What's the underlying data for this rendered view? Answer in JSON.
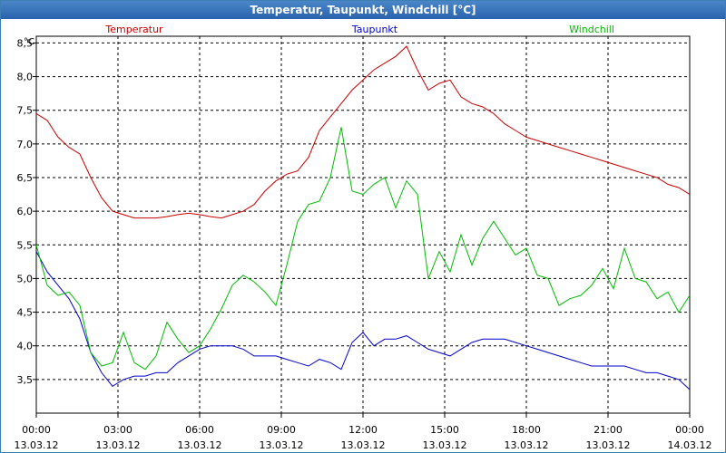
{
  "window": {
    "title": "Temperatur, Taupunkt, Windchill [°C]"
  },
  "colors": {
    "temperatur": "#cc0000",
    "taupunkt": "#0000cc",
    "windchill": "#00bb00",
    "grid": "#000000"
  },
  "chart_data": {
    "type": "line",
    "title": "Temperatur, Taupunkt, Windchill [°C]",
    "ylabel": "°C",
    "xlabel": "",
    "ylim": [
      3.0,
      8.6
    ],
    "xlim": [
      0,
      24
    ],
    "yticks": [
      3.5,
      4.0,
      4.5,
      5.0,
      5.5,
      6.0,
      6.5,
      7.0,
      7.5,
      8.0,
      8.5
    ],
    "ytick_labels": [
      "3,5",
      "4,0",
      "4,5",
      "5,0",
      "5,5",
      "6,0",
      "6,5",
      "7,0",
      "7,5",
      "8,0",
      "8,5"
    ],
    "xticks": [
      {
        "t": 0,
        "time": "00:00",
        "date": "13.03.12"
      },
      {
        "t": 3,
        "time": "03:00",
        "date": "13.03.12"
      },
      {
        "t": 6,
        "time": "06:00",
        "date": "13.03.12"
      },
      {
        "t": 9,
        "time": "09:00",
        "date": "13.03.12"
      },
      {
        "t": 12,
        "time": "12:00",
        "date": "13.03.12"
      },
      {
        "t": 15,
        "time": "15:00",
        "date": "13.03.12"
      },
      {
        "t": 18,
        "time": "18:00",
        "date": "13.03.12"
      },
      {
        "t": 21,
        "time": "21:00",
        "date": "13.03.12"
      },
      {
        "t": 24,
        "time": "00:00",
        "date": "14.03.12"
      }
    ],
    "grid": true,
    "series": [
      {
        "name": "Temperatur",
        "color": "#cc0000",
        "x": [
          0,
          0.4,
          0.8,
          1.2,
          1.6,
          2.0,
          2.4,
          2.8,
          3.2,
          3.6,
          4.0,
          4.4,
          4.8,
          5.2,
          5.6,
          6.0,
          6.4,
          6.8,
          7.2,
          7.6,
          8.0,
          8.4,
          8.8,
          9.2,
          9.6,
          10.0,
          10.4,
          10.8,
          11.2,
          11.6,
          12.0,
          12.4,
          12.8,
          13.2,
          13.6,
          14.0,
          14.4,
          14.8,
          15.2,
          15.6,
          16.0,
          16.4,
          16.8,
          17.2,
          17.6,
          18.0,
          18.4,
          18.8,
          19.2,
          19.6,
          20.0,
          20.4,
          20.8,
          21.2,
          21.6,
          22.0,
          22.4,
          22.8,
          23.2,
          23.6,
          24.0
        ],
        "values": [
          7.45,
          7.35,
          7.1,
          6.95,
          6.85,
          6.5,
          6.2,
          6.0,
          5.95,
          5.9,
          5.9,
          5.9,
          5.92,
          5.95,
          5.97,
          5.95,
          5.92,
          5.9,
          5.95,
          6.0,
          6.1,
          6.3,
          6.45,
          6.55,
          6.6,
          6.8,
          7.2,
          7.4,
          7.6,
          7.8,
          7.95,
          8.1,
          8.2,
          8.3,
          8.45,
          8.1,
          7.8,
          7.9,
          7.95,
          7.7,
          7.6,
          7.55,
          7.45,
          7.3,
          7.2,
          7.1,
          7.05,
          7.0,
          6.95,
          6.9,
          6.85,
          6.8,
          6.75,
          6.7,
          6.65,
          6.6,
          6.55,
          6.5,
          6.4,
          6.35,
          6.25
        ]
      },
      {
        "name": "Taupunkt",
        "color": "#0000cc",
        "x": [
          0,
          0.4,
          0.8,
          1.2,
          1.6,
          2.0,
          2.4,
          2.8,
          3.2,
          3.6,
          4.0,
          4.4,
          4.8,
          5.2,
          5.6,
          6.0,
          6.4,
          6.8,
          7.2,
          7.6,
          8.0,
          8.4,
          8.8,
          9.2,
          9.6,
          10.0,
          10.4,
          10.8,
          11.2,
          11.6,
          12.0,
          12.4,
          12.8,
          13.2,
          13.6,
          14.0,
          14.4,
          14.8,
          15.2,
          15.6,
          16.0,
          16.4,
          16.8,
          17.2,
          17.6,
          18.0,
          18.4,
          18.8,
          19.2,
          19.6,
          20.0,
          20.4,
          20.8,
          21.2,
          21.6,
          22.0,
          22.4,
          22.8,
          23.2,
          23.6,
          24.0
        ],
        "values": [
          5.4,
          5.1,
          4.9,
          4.7,
          4.4,
          3.9,
          3.6,
          3.4,
          3.5,
          3.55,
          3.55,
          3.6,
          3.6,
          3.75,
          3.85,
          3.95,
          4.0,
          4.0,
          4.0,
          3.95,
          3.85,
          3.85,
          3.85,
          3.8,
          3.75,
          3.7,
          3.8,
          3.75,
          3.65,
          4.05,
          4.2,
          4.0,
          4.1,
          4.1,
          4.15,
          4.05,
          3.95,
          3.9,
          3.85,
          3.95,
          4.05,
          4.1,
          4.1,
          4.1,
          4.05,
          4.0,
          3.95,
          3.9,
          3.85,
          3.8,
          3.75,
          3.7,
          3.7,
          3.7,
          3.7,
          3.65,
          3.6,
          3.6,
          3.55,
          3.5,
          3.35
        ]
      },
      {
        "name": "Windchill",
        "color": "#00bb00",
        "x": [
          0,
          0.4,
          0.8,
          1.2,
          1.6,
          2.0,
          2.4,
          2.8,
          3.2,
          3.6,
          4.0,
          4.4,
          4.8,
          5.2,
          5.6,
          6.0,
          6.4,
          6.8,
          7.2,
          7.6,
          8.0,
          8.4,
          8.8,
          9.2,
          9.6,
          10.0,
          10.4,
          10.8,
          11.2,
          11.6,
          12.0,
          12.4,
          12.8,
          13.2,
          13.6,
          14.0,
          14.4,
          14.8,
          15.2,
          15.6,
          16.0,
          16.4,
          16.8,
          17.2,
          17.6,
          18.0,
          18.4,
          18.8,
          19.2,
          19.6,
          20.0,
          20.4,
          20.8,
          21.2,
          21.6,
          22.0,
          22.4,
          22.8,
          23.2,
          23.6,
          24.0
        ],
        "values": [
          5.5,
          4.9,
          4.75,
          4.8,
          4.6,
          3.9,
          3.7,
          3.75,
          4.2,
          3.75,
          3.65,
          3.85,
          4.35,
          4.1,
          3.9,
          4.0,
          4.25,
          4.55,
          4.9,
          5.05,
          4.95,
          4.8,
          4.6,
          5.2,
          5.85,
          6.1,
          6.15,
          6.5,
          7.25,
          6.3,
          6.25,
          6.4,
          6.5,
          6.05,
          6.45,
          6.25,
          5.0,
          5.4,
          5.1,
          5.65,
          5.2,
          5.6,
          5.85,
          5.6,
          5.35,
          5.45,
          5.05,
          5.0,
          4.6,
          4.7,
          4.75,
          4.9,
          5.15,
          4.85,
          5.45,
          5.0,
          4.95,
          4.7,
          4.8,
          4.5,
          4.75
        ]
      }
    ]
  }
}
